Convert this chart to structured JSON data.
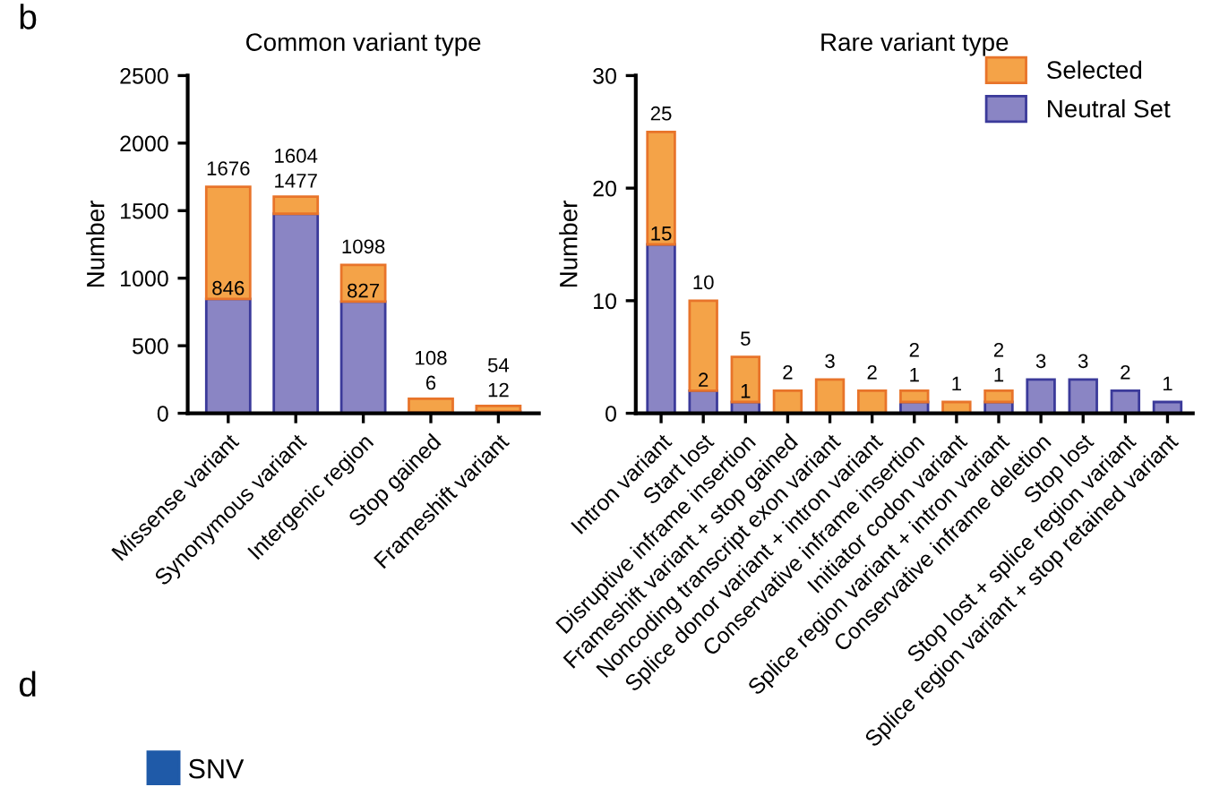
{
  "chart_data": [
    {
      "type": "bar",
      "title": "Common variant type",
      "ylabel": "Number",
      "stacked": true,
      "categories": [
        "Missense variant",
        "Synonymous variant",
        "Intergenic region",
        "Stop gained",
        "Frameshift variant"
      ],
      "series": [
        {
          "color": "#8a85c4",
          "values": [
            846,
            1477,
            827,
            6,
            12
          ],
          "value_labels": [
            "846",
            "1477",
            "827",
            "6",
            "12"
          ]
        },
        {
          "color": "#f4a348",
          "values": [
            830,
            127,
            271,
            102,
            42
          ]
        }
      ],
      "totals": [
        "1676",
        "1604",
        "1098",
        "108",
        "54"
      ],
      "ylim": [
        0,
        2500
      ],
      "yticks": [
        0,
        500,
        1000,
        1500,
        2000,
        2500
      ],
      "grid": false,
      "legend": false,
      "annotations": [
        "b",
        "d",
        "SNV"
      ]
    },
    {
      "type": "bar",
      "title": "Rare variant type",
      "ylabel": "Number",
      "stacked": true,
      "categories": [
        "Intron variant",
        "Start lost",
        "Disruptive inframe insertion",
        "Frameshift variant + stop gained",
        "Noncoding transcript exon variant",
        "Splice donor variant + intron variant",
        "Conservative inframe insertion",
        "Initiator codon variant",
        "Splice region variant + intron variant",
        "Conservative inframe deletion",
        "Stop lost",
        "Stop lost + splice region variant",
        "Splice region variant + stop retained variant"
      ],
      "series": [
        {
          "name": "Neutral Set",
          "color": "#8a85c4",
          "values": [
            15,
            2,
            1,
            0,
            0,
            0,
            1,
            0,
            1,
            3,
            3,
            2,
            1
          ],
          "value_labels": [
            "15",
            "2",
            "1",
            null,
            null,
            null,
            "1",
            null,
            "1",
            null,
            null,
            null,
            null
          ]
        },
        {
          "name": "Selected",
          "color": "#f4a348",
          "values": [
            10,
            8,
            4,
            2,
            3,
            2,
            1,
            1,
            1,
            0,
            0,
            0,
            0
          ]
        }
      ],
      "totals": [
        "25",
        "10",
        "5",
        "2",
        "3",
        "2",
        "2",
        "1",
        "2",
        "3",
        "3",
        "2",
        "1"
      ],
      "ylim": [
        0,
        30
      ],
      "yticks": [
        0,
        10,
        20,
        30
      ],
      "grid": false,
      "legend": "top right"
    }
  ]
}
